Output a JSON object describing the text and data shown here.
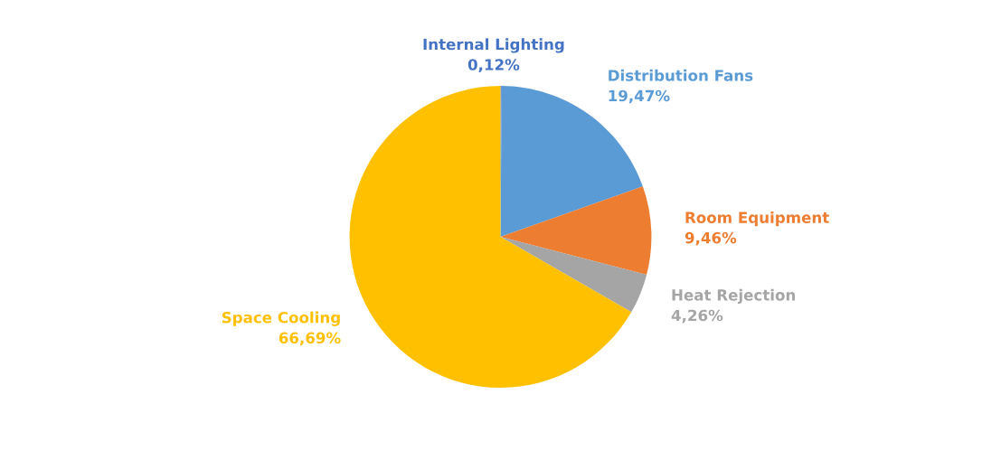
{
  "chart_data": {
    "type": "pie",
    "categories": [
      "Internal Lighting",
      "Distribution Fans",
      "Room Equipment",
      "Heat Rejection",
      "Space Cooling"
    ],
    "values": [
      0.12,
      19.47,
      9.46,
      4.26,
      66.69
    ],
    "value_labels": [
      "0,12%",
      "19,47%",
      "9,46%",
      "4,26%",
      "66,69%"
    ],
    "colors": [
      "#4472c4",
      "#5b9bd5",
      "#ed7d31",
      "#a5a5a5",
      "#ffc000"
    ],
    "legend": false
  }
}
